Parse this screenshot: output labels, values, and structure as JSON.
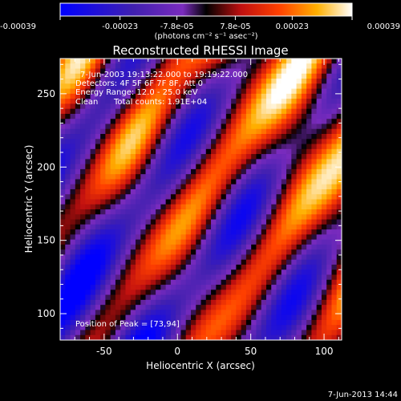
{
  "chart_data": {
    "type": "heatmap",
    "title": "Reconstructed RHESSI Image",
    "xlabel": "Heliocentric X (arcsec)",
    "ylabel": "Heliocentric Y (arcsec)",
    "xlim": [
      -80,
      112
    ],
    "ylim": [
      82,
      274
    ],
    "xticks": [
      "-50",
      "0",
      "50",
      "100"
    ],
    "xtick_values": [
      -50,
      0,
      50,
      100
    ],
    "yticks": [
      "100",
      "150",
      "200",
      "250"
    ],
    "ytick_values": [
      100,
      150,
      200,
      250
    ],
    "colorbar": {
      "ticks": [
        "-0.00039",
        "-0.00023",
        "-7.8e-05",
        "7.8e-05",
        "0.00023",
        "0.00039"
      ],
      "tick_values": [
        -0.00039,
        -0.00023,
        -7.8e-05,
        7.8e-05,
        0.00023,
        0.00039
      ],
      "range": [
        -0.00039,
        0.00039
      ],
      "unit_label": "(photons cm⁻² s⁻¹ asec⁻²)",
      "colors": [
        "#0000ff",
        "#4020b0",
        "#7a2bbd",
        "#000000",
        "#c01010",
        "#ff4000",
        "#ffb000",
        "#ffffff"
      ]
    },
    "annotations": {
      "time_range": "7-Jun-2003 19:13:22.000 to 19:19:22.000",
      "detectors": "Detectors: 4F 5F 6F 7F 8F, Att 0",
      "energy": "Energy Range: 12.0 - 25.0 keV",
      "clean_label": "Clean",
      "total_counts": "Total counts: 1.91E+04",
      "peak": "Position of Peak = [73,94]"
    },
    "timestamp": "7-Jun-2013 14:44"
  },
  "colors": {
    "background": "#000000",
    "axis": "#ffffff"
  }
}
